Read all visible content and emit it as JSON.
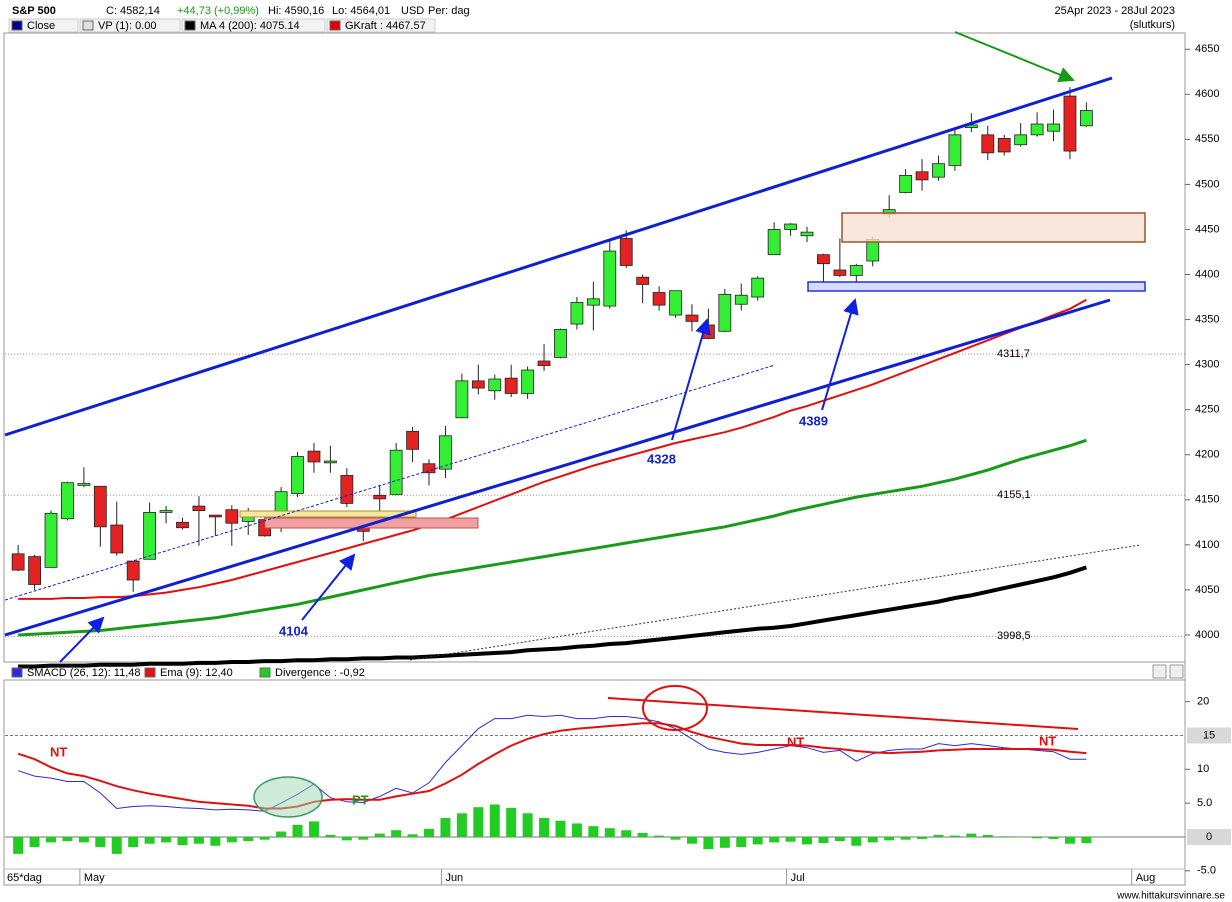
{
  "header": {
    "title": "S&P 500",
    "quote": "C: 4582,14",
    "change": "+44,73 (+0,99%)",
    "high": "Hi: 4590,16",
    "low": "Lo: 4564,01",
    "currency": "USD",
    "period": "Per: dag",
    "date_range": "25Apr 2023 - 28Jul 2023",
    "price_type": "(slutkurs)",
    "legend": [
      {
        "label": "Close",
        "color": "#00008b"
      },
      {
        "label": "VP (1): 0.00",
        "color": "#e0e0e0"
      },
      {
        "label": "MA 4 (200): 4075.14",
        "color": "#000000"
      },
      {
        "label": "GKraft : 4467.57",
        "color": "#dd0000"
      }
    ]
  },
  "chart_data": [
    {
      "type": "candlestick",
      "up_color": "#33ee33",
      "down_color": "#e52222",
      "open": [
        4090,
        4087,
        4075,
        4129,
        4166,
        4165,
        4122,
        4082,
        4084,
        4136,
        4125,
        4143,
        4133,
        4139,
        4126,
        4128,
        4122,
        4157,
        4204,
        4191,
        4177,
        4132,
        4155,
        4156,
        4226,
        4190,
        4184,
        4241,
        4282,
        4271,
        4285,
        4268,
        4304,
        4308,
        4345,
        4366,
        4365,
        4440,
        4397,
        4380,
        4355,
        4355,
        4344,
        4337,
        4367,
        4375,
        4422,
        4450,
        4443,
        4422,
        4405,
        4399,
        4415,
        4467,
        4491,
        4514,
        4508,
        4521,
        4563,
        4555,
        4551,
        4544,
        4555,
        4559,
        4598,
        4565
      ],
      "high": [
        4100,
        4089,
        4138,
        4170,
        4186,
        4165,
        4148,
        4082,
        4147,
        4143,
        4130,
        4154,
        4133,
        4144,
        4141,
        4135,
        4164,
        4203,
        4213,
        4210,
        4185,
        4132,
        4166,
        4213,
        4231,
        4195,
        4232,
        4290,
        4300,
        4289,
        4300,
        4298,
        4323,
        4340,
        4375,
        4392,
        4439,
        4449,
        4400,
        4387,
        4382,
        4367,
        4362,
        4384,
        4390,
        4398,
        4458,
        4457,
        4453,
        4423,
        4440,
        4412,
        4442,
        4488,
        4517,
        4528,
        4532,
        4563,
        4579,
        4565,
        4555,
        4568,
        4580,
        4583,
        4608,
        4591
      ],
      "low": [
        4071,
        4050,
        4075,
        4127,
        4164,
        4098,
        4088,
        4048,
        4084,
        4124,
        4117,
        4099,
        4110,
        4099,
        4111,
        4109,
        4114,
        4153,
        4180,
        4180,
        4142,
        4104,
        4136,
        4155,
        4192,
        4166,
        4174,
        4241,
        4267,
        4261,
        4264,
        4262,
        4293,
        4307,
        4339,
        4338,
        4362,
        4407,
        4368,
        4360,
        4352,
        4337,
        4328,
        4336,
        4360,
        4371,
        4422,
        4443,
        4436,
        4385,
        4397,
        4392,
        4409,
        4463,
        4490,
        4493,
        4504,
        4515,
        4558,
        4527,
        4532,
        4542,
        4553,
        4548,
        4528,
        4564
      ],
      "close": [
        4072,
        4056,
        4135,
        4169,
        4168,
        4120,
        4091,
        4061,
        4136,
        4138,
        4119,
        4138,
        4131,
        4124,
        4136,
        4110,
        4159,
        4198,
        4192,
        4193,
        4146,
        4115,
        4151,
        4205,
        4206,
        4180,
        4221,
        4282,
        4274,
        4284,
        4268,
        4294,
        4299,
        4339,
        4369,
        4373,
        4426,
        4410,
        4389,
        4366,
        4382,
        4348,
        4329,
        4378,
        4377,
        4396,
        4450,
        4456,
        4447,
        4412,
        4399,
        4410,
        4439,
        4472,
        4510,
        4505,
        4523,
        4555,
        4566,
        4535,
        4536,
        4555,
        4567,
        4567,
        4537,
        4582
      ],
      "lines": [
        {
          "color": "#000000",
          "width": 4,
          "values": [
            3965,
            3965,
            3966,
            3966,
            3966,
            3967,
            3967,
            3967,
            3968,
            3968,
            3968,
            3969,
            3969,
            3970,
            3970,
            3971,
            3971,
            3972,
            3972,
            3973,
            3973,
            3974,
            3974,
            3975,
            3975,
            3976,
            3977,
            3978,
            3979,
            3980,
            3981,
            3983,
            3984,
            3985,
            3987,
            3988,
            3990,
            3991,
            3993,
            3995,
            3997,
            3999,
            4001,
            4003,
            4005,
            4007,
            4008,
            4010,
            4013,
            4016,
            4019,
            4022,
            4025,
            4028,
            4031,
            4034,
            4037,
            4041,
            4044,
            4048,
            4052,
            4056,
            4060,
            4064,
            4069,
            4075
          ]
        },
        {
          "color": "#1a9a1a",
          "width": 3,
          "values": [
            4000,
            4001,
            4002,
            4003,
            4004,
            4005,
            4007,
            4009,
            4011,
            4013,
            4015,
            4017,
            4019,
            4022,
            4025,
            4028,
            4031,
            4034,
            4038,
            4042,
            4046,
            4050,
            4054,
            4058,
            4062,
            4066,
            4069,
            4072,
            4075,
            4078,
            4081,
            4084,
            4087,
            4090,
            4093,
            4096,
            4099,
            4102,
            4105,
            4108,
            4111,
            4114,
            4117,
            4120,
            4124,
            4128,
            4132,
            4137,
            4141,
            4145,
            4149,
            4153,
            4156,
            4159,
            4162,
            4165,
            4169,
            4173,
            4178,
            4183,
            4189,
            4195,
            4200,
            4205,
            4210,
            4216
          ]
        },
        {
          "color": "#e01010",
          "width": 2,
          "values": [
            4040,
            4040,
            4040,
            4041,
            4041,
            4042,
            4042,
            4043,
            4045,
            4047,
            4050,
            4053,
            4057,
            4061,
            4066,
            4071,
            4076,
            4081,
            4086,
            4091,
            4096,
            4101,
            4106,
            4111,
            4116,
            4122,
            4128,
            4135,
            4142,
            4149,
            4156,
            4163,
            4170,
            4176,
            4182,
            4188,
            4193,
            4198,
            4203,
            4208,
            4213,
            4217,
            4221,
            4225,
            4230,
            4236,
            4242,
            4249,
            4254,
            4260,
            4266,
            4272,
            4278,
            4285,
            4292,
            4299,
            4306,
            4313,
            4320,
            4327,
            4334,
            4341,
            4348,
            4355,
            4362,
            4372
          ]
        }
      ],
      "xlim": [
        -0.8,
        71
      ],
      "ylim": [
        3970,
        4668
      ],
      "yticks": [
        4000,
        4050,
        4100,
        4150,
        4200,
        4250,
        4300,
        4350,
        4400,
        4450,
        4500,
        4550,
        4600,
        4650
      ],
      "levels": [
        {
          "value": 4311.7,
          "label": "4311,7"
        },
        {
          "value": 4155.1,
          "label": "4155,1"
        },
        {
          "value": 3998.5,
          "label": "3998,5"
        }
      ],
      "annotations": [
        "4104",
        "4328",
        "4389"
      ]
    },
    {
      "type": "macd",
      "xlim": [
        -0.8,
        71
      ],
      "ylim": [
        -7.1,
        23.2
      ],
      "yticks": [
        20,
        10,
        {
          "value": 5,
          "label": "5.0"
        },
        {
          "value": -5,
          "label": "-5.0"
        }
      ],
      "reference_lines": [
        15,
        0
      ],
      "xticks": [
        {
          "value": 4,
          "label": "May"
        },
        {
          "value": 26,
          "label": "Jun"
        },
        {
          "value": 47,
          "label": "Jul"
        },
        {
          "value": 68,
          "label": "Aug"
        }
      ],
      "series": [
        {
          "name": "SMACD (26, 12): 11,48",
          "color": "#2a2ae0",
          "kind": "line",
          "values": [
            9.8,
            9.0,
            8.7,
            8.2,
            8.2,
            6.5,
            4.2,
            4.5,
            4.6,
            4.5,
            4.3,
            4.2,
            4.0,
            4.1,
            4.0,
            3.8,
            5.0,
            6.3,
            7.8,
            5.8,
            5.2,
            5.1,
            6.0,
            7.2,
            6.5,
            8.0,
            11.0,
            13.5,
            16.0,
            17.5,
            17.5,
            18.0,
            17.8,
            18.0,
            17.5,
            17.5,
            17.8,
            17.8,
            17.5,
            17.0,
            16.0,
            14.5,
            13.0,
            12.5,
            12.2,
            12.5,
            13.0,
            13.5,
            13.2,
            12.5,
            12.8,
            11.2,
            12.3,
            12.8,
            13.0,
            13.0,
            13.8,
            13.5,
            13.8,
            13.5,
            13.2,
            13.0,
            12.8,
            12.6,
            11.5,
            11.5
          ]
        },
        {
          "name": "Ema (9): 12,40",
          "color": "#e01010",
          "kind": "line",
          "values": [
            12.3,
            11.5,
            10.3,
            9.4,
            9.0,
            8.3,
            7.5,
            6.9,
            6.4,
            6.0,
            5.6,
            5.2,
            5.0,
            4.8,
            4.6,
            4.2,
            4.2,
            4.5,
            5.2,
            5.5,
            5.6,
            5.5,
            5.5,
            6.0,
            6.4,
            6.8,
            7.9,
            9.2,
            10.8,
            12.2,
            13.5,
            14.5,
            15.2,
            15.7,
            16.0,
            16.2,
            16.4,
            16.6,
            16.8,
            16.8,
            16.4,
            15.5,
            14.8,
            14.3,
            13.8,
            13.6,
            13.6,
            13.6,
            13.5,
            13.2,
            13.0,
            12.7,
            12.5,
            12.4,
            12.5,
            12.6,
            12.8,
            12.9,
            13.0,
            13.0,
            13.0,
            13.0,
            13.0,
            12.9,
            12.6,
            12.4
          ]
        },
        {
          "name": "Divergence : -0,92",
          "color": "#22cc22",
          "kind": "bar",
          "values": [
            -2.5,
            -1.5,
            -0.8,
            -0.6,
            -0.8,
            -1.5,
            -2.5,
            -1.5,
            -1.0,
            -0.8,
            -1.2,
            -1.0,
            -1.3,
            -0.8,
            -0.6,
            -0.4,
            0.8,
            1.8,
            2.3,
            0.3,
            -0.5,
            -0.4,
            0.5,
            1.0,
            0.4,
            1.2,
            2.8,
            3.5,
            4.4,
            4.8,
            4.3,
            3.5,
            2.8,
            2.4,
            2.0,
            1.6,
            1.3,
            1.0,
            0.6,
            0.2,
            -0.4,
            -1.0,
            -1.8,
            -1.6,
            -1.5,
            -1.1,
            -0.8,
            -0.7,
            -1.1,
            -0.9,
            -0.6,
            -1.3,
            -0.8,
            -0.5,
            -0.4,
            -0.3,
            0.3,
            0.2,
            0.5,
            0.3,
            0.1,
            0.0,
            -0.2,
            -0.3,
            -1.0,
            -0.9
          ]
        }
      ],
      "annotations": [
        "NT",
        "NT",
        "NT",
        "PT"
      ]
    }
  ],
  "footer": {
    "period_label": "65*dag",
    "watermark": "www.hittakursvinnare.se"
  }
}
